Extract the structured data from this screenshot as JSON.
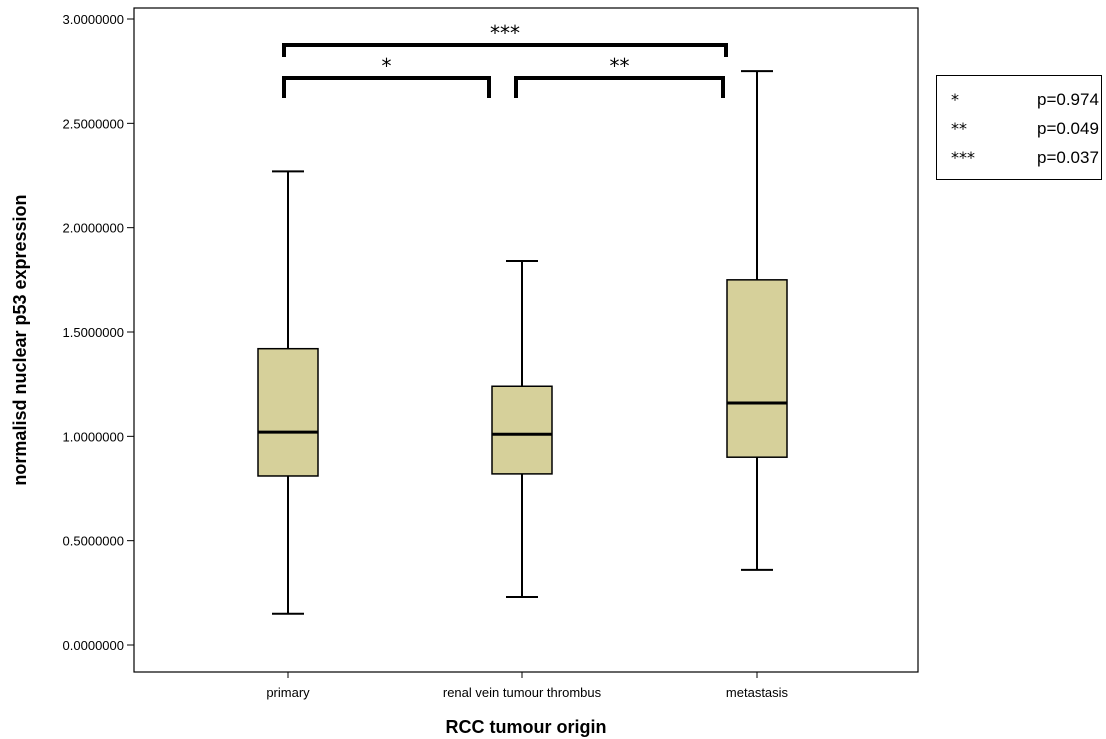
{
  "chart_data": {
    "type": "box",
    "xlabel": "RCC tumour origin",
    "ylabel": "normalisd nuclear p53 expression",
    "ylim": [
      -0.05,
      3.05
    ],
    "yticks": [
      "0.0000000",
      "0.5000000",
      "1.0000000",
      "1.5000000",
      "2.0000000",
      "2.5000000",
      "3.0000000"
    ],
    "ytick_values": [
      0,
      0.5,
      1.0,
      1.5,
      2.0,
      2.5,
      3.0
    ],
    "categories": [
      "primary",
      "renal vein tumour thrombus",
      "metastasis"
    ],
    "boxes": [
      {
        "category": "primary",
        "min": 0.15,
        "q1": 0.81,
        "median": 1.02,
        "q3": 1.42,
        "max": 2.27
      },
      {
        "category": "renal vein tumour thrombus",
        "min": 0.23,
        "q1": 0.82,
        "median": 1.01,
        "q3": 1.24,
        "max": 1.84
      },
      {
        "category": "metastasis",
        "min": 0.36,
        "q1": 0.9,
        "median": 1.16,
        "q3": 1.75,
        "max": 2.75
      }
    ],
    "box_color": "#d6d09a",
    "significance": [
      {
        "from": 0,
        "to": 1,
        "label": "*",
        "level": 1
      },
      {
        "from": 1,
        "to": 2,
        "label": "**",
        "level": 1
      },
      {
        "from": 0,
        "to": 2,
        "label": "***",
        "level": 2
      }
    ],
    "legend": [
      {
        "symbol": "*",
        "p": "p=0.974"
      },
      {
        "symbol": "**",
        "p": "p=0.049"
      },
      {
        "symbol": "***",
        "p": "p=0.037"
      }
    ],
    "legend_position": "right"
  }
}
